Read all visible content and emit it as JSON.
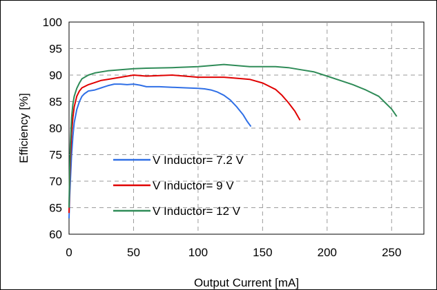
{
  "chart_data": {
    "type": "line",
    "xlabel": "Output Current [mA]",
    "ylabel": "Efficiency [%]",
    "xlim": [
      0,
      275
    ],
    "ylim": [
      60,
      100
    ],
    "xticks": [
      0,
      50,
      100,
      150,
      200,
      250
    ],
    "yticks": [
      60,
      65,
      70,
      75,
      80,
      85,
      90,
      95,
      100
    ],
    "grid": true,
    "legend_position": "lower-left",
    "series": [
      {
        "name": "V Inductor= 7.2 V",
        "color": "#2F6FE6",
        "x": [
          0,
          0.5,
          1,
          2,
          3,
          4,
          6,
          8,
          10,
          12,
          15,
          20,
          25,
          30,
          35,
          40,
          45,
          50,
          55,
          60,
          70,
          80,
          90,
          100,
          105,
          110,
          115,
          120,
          125,
          130,
          135,
          138,
          141
        ],
        "y": [
          63,
          67,
          70,
          75,
          78.5,
          81,
          83.5,
          85,
          86,
          86.5,
          87,
          87.2,
          87.6,
          88,
          88.3,
          88.3,
          88.2,
          88.3,
          88.1,
          87.8,
          87.8,
          87.7,
          87.6,
          87.5,
          87.4,
          87.2,
          86.8,
          86.2,
          85.3,
          84,
          82.5,
          81.3,
          80.3
        ]
      },
      {
        "name": "V Inductor= 9 V",
        "color": "#E00000",
        "x": [
          0,
          0.5,
          1,
          2,
          3,
          4,
          6,
          8,
          10,
          15,
          20,
          25,
          30,
          40,
          50,
          60,
          70,
          80,
          100,
          120,
          130,
          140,
          150,
          160,
          165,
          170,
          175,
          179
        ],
        "y": [
          64,
          70,
          74,
          79,
          82,
          84,
          86,
          87,
          87.6,
          88.2,
          88.6,
          89,
          89.2,
          89.6,
          90,
          89.8,
          89.9,
          90,
          89.6,
          89.6,
          89.4,
          89.2,
          88.5,
          87.3,
          86.2,
          84.8,
          83.2,
          81.5
        ]
      },
      {
        "name": "V Inductor= 12 V",
        "color": "#2E8B57",
        "x": [
          0,
          0.5,
          1,
          2,
          3,
          4,
          6,
          8,
          10,
          15,
          20,
          30,
          40,
          50,
          60,
          80,
          100,
          120,
          140,
          160,
          170,
          180,
          190,
          200,
          210,
          220,
          230,
          240,
          245,
          250,
          254
        ],
        "y": [
          65,
          72,
          77,
          82,
          84.5,
          86,
          87.5,
          88.5,
          89.3,
          90,
          90.4,
          90.8,
          91,
          91.2,
          91.3,
          91.4,
          91.6,
          92,
          91.6,
          91.6,
          91.4,
          91,
          90.6,
          89.8,
          89,
          88.2,
          87.2,
          86,
          84.8,
          83.6,
          82.2
        ]
      }
    ]
  }
}
